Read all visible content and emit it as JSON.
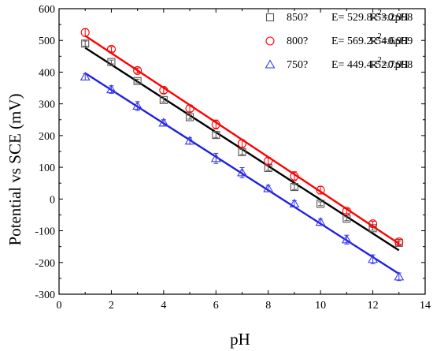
{
  "chart_data": {
    "type": "scatter",
    "xlabel": "pH",
    "ylabel": "Potential vs SCE (mV)",
    "xlim": [
      0,
      14
    ],
    "ylim": [
      -300,
      600
    ],
    "x_ticks": [
      0,
      2,
      4,
      6,
      8,
      10,
      12,
      14
    ],
    "y_ticks": [
      -300,
      -200,
      -100,
      0,
      100,
      200,
      300,
      400,
      500,
      600
    ],
    "legend_position": "top-right",
    "x": [
      1,
      2,
      3,
      4,
      5,
      6,
      7,
      8,
      9,
      10,
      11,
      12,
      13
    ],
    "series": [
      {
        "name": "850?",
        "equation": "E= 529.8-53.2pH",
        "r2_prefix": "R",
        "r2_sup": "2",
        "r2_value": "=0.998",
        "marker": "square",
        "color": "#555555",
        "line_color": "#000000",
        "fit": {
          "intercept": 529.8,
          "slope": -53.2
        },
        "values": [
          490,
          432,
          372,
          312,
          258,
          202,
          148,
          98,
          38,
          -15,
          -62,
          -92,
          -138
        ],
        "errors": [
          8,
          6,
          6,
          6,
          6,
          8,
          8,
          8,
          8,
          6,
          6,
          6,
          6
        ]
      },
      {
        "name": "800?",
        "equation": "E= 569.2-54.6pH",
        "r2_prefix": "R",
        "r2_sup": "2",
        "r2_value": "=0.999",
        "marker": "circle",
        "color": "#ff0000",
        "line_color": "#ff0000",
        "fit": {
          "intercept": 569.2,
          "slope": -54.6
        },
        "values": [
          525,
          472,
          405,
          343,
          285,
          235,
          175,
          120,
          72,
          28,
          -38,
          -78,
          -135
        ],
        "errors": [
          12,
          8,
          8,
          10,
          10,
          14,
          12,
          10,
          14,
          12,
          8,
          8,
          8
        ]
      },
      {
        "name": "750?",
        "equation": "E= 449.4-52.7pH",
        "r2_prefix": "R",
        "r2_sup": "2",
        "r2_value": "=0.998",
        "marker": "triangle",
        "color": "#3a3af0",
        "line_color": "#2020e0",
        "fit": {
          "intercept": 449.4,
          "slope": -52.7
        },
        "values": [
          385,
          345,
          293,
          240,
          183,
          128,
          83,
          33,
          -15,
          -73,
          -128,
          -190,
          -245
        ],
        "errors": [
          10,
          12,
          14,
          10,
          10,
          16,
          16,
          10,
          10,
          10,
          14,
          14,
          12
        ]
      }
    ]
  }
}
